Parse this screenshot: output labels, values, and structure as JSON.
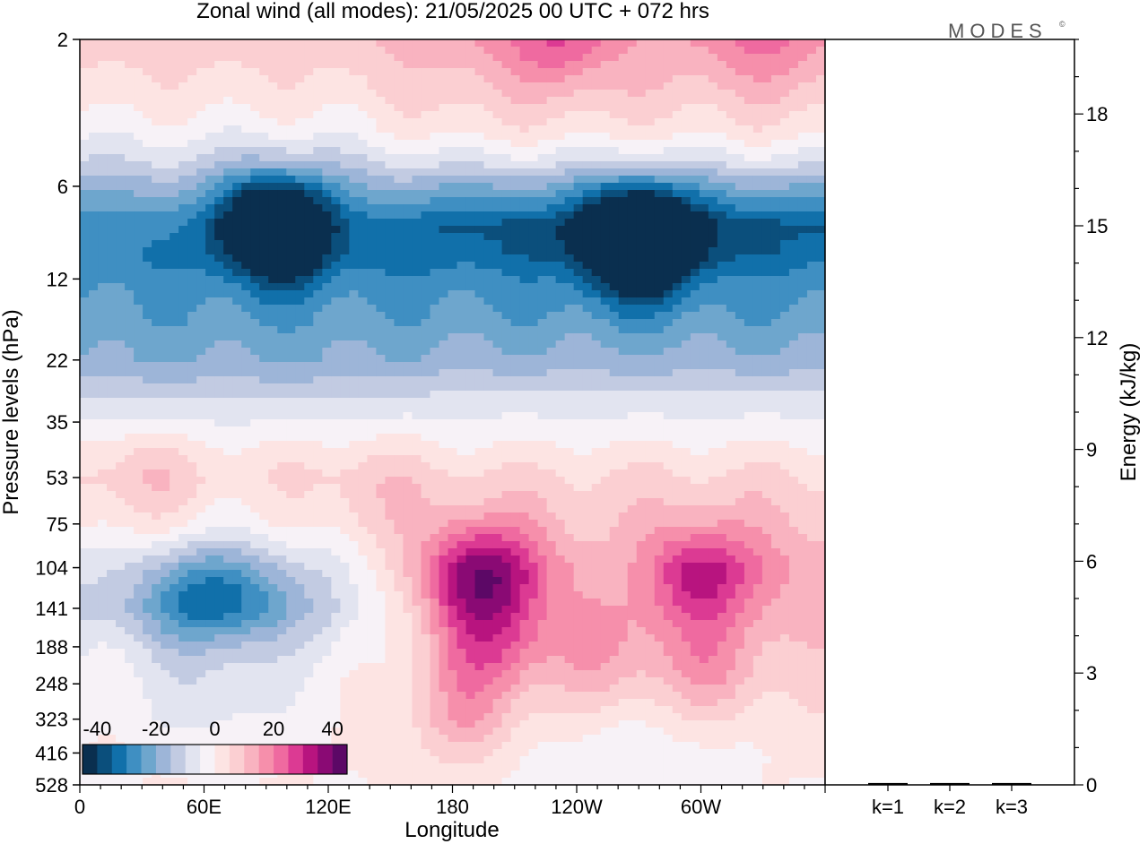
{
  "chart_data": [
    {
      "type": "heatmap",
      "title": "Zonal wind (all modes):  21/05/2025  00 UTC  + 072 hrs",
      "xlabel": "Longitude",
      "ylabel": "Pressure levels (hPa)",
      "x_ticks": [
        {
          "lon": 0,
          "label": "0"
        },
        {
          "lon": 60,
          "label": "60E"
        },
        {
          "lon": 120,
          "label": "120E"
        },
        {
          "lon": 180,
          "label": "180"
        },
        {
          "lon": 240,
          "label": "120W"
        },
        {
          "lon": 300,
          "label": "60W"
        }
      ],
      "xlim": [
        0,
        360
      ],
      "y_scale": "log",
      "y_levels": [
        "2",
        "6",
        "12",
        "22",
        "35",
        "53",
        "75",
        "104",
        "141",
        "188",
        "248",
        "323",
        "416",
        "528"
      ],
      "y_values": [
        2,
        6,
        12,
        22,
        35,
        53,
        75,
        104,
        141,
        188,
        248,
        323,
        416,
        528
      ],
      "colorbar": {
        "tick_labels": [
          "-40",
          "-20",
          "0",
          "20",
          "40"
        ],
        "tick_values": [
          -40,
          -20,
          0,
          20,
          40
        ],
        "colors": [
          "#0a2f4f",
          "#0b4f7c",
          "#1170aa",
          "#3f8fc2",
          "#6ea6cd",
          "#9db5d8",
          "#c2cbe2",
          "#e2e4f0",
          "#f7f2f7",
          "#fde4e3",
          "#fbcfd2",
          "#f9b3c0",
          "#f68fab",
          "#ef6aa0",
          "#dc3a93",
          "#b8147f",
          "#8a0a74",
          "#5c0866"
        ]
      },
      "levels_west": [
        {
          "p": 2,
          "u": 8
        },
        {
          "p": 3,
          "u": 3
        },
        {
          "p": 4,
          "u": -3
        },
        {
          "p": 5,
          "u": -10
        },
        {
          "p": 6,
          "u": -18
        },
        {
          "p": 8,
          "u": -28
        },
        {
          "p": 10,
          "u": -30
        },
        {
          "p": 12,
          "u": -27
        },
        {
          "p": 16,
          "u": -24
        },
        {
          "p": 22,
          "u": -20
        },
        {
          "p": 28,
          "u": -12
        },
        {
          "p": 35,
          "u": -5
        },
        {
          "p": 45,
          "u": 2
        },
        {
          "p": 53,
          "u": 4
        },
        {
          "p": 75,
          "u": 0
        },
        {
          "p": 104,
          "u": -8
        },
        {
          "p": 141,
          "u": -12
        },
        {
          "p": 188,
          "u": -6
        },
        {
          "p": 248,
          "u": -3
        },
        {
          "p": 323,
          "u": -2
        },
        {
          "p": 416,
          "u": 0
        },
        {
          "p": 528,
          "u": 0
        }
      ],
      "levels_east": [
        {
          "p": 2,
          "u": 14
        },
        {
          "p": 3,
          "u": 8
        },
        {
          "p": 4,
          "u": 2
        },
        {
          "p": 5,
          "u": -8
        },
        {
          "p": 6,
          "u": -20
        },
        {
          "p": 8,
          "u": -36
        },
        {
          "p": 10,
          "u": -34
        },
        {
          "p": 12,
          "u": -28
        },
        {
          "p": 16,
          "u": -24
        },
        {
          "p": 22,
          "u": -18
        },
        {
          "p": 28,
          "u": -10
        },
        {
          "p": 35,
          "u": -4
        },
        {
          "p": 45,
          "u": 2
        },
        {
          "p": 53,
          "u": 6
        },
        {
          "p": 75,
          "u": 10
        },
        {
          "p": 104,
          "u": 14
        },
        {
          "p": 141,
          "u": 12
        },
        {
          "p": 188,
          "u": 8
        },
        {
          "p": 248,
          "u": 5
        },
        {
          "p": 323,
          "u": 3
        },
        {
          "p": 416,
          "u": 1
        },
        {
          "p": 528,
          "u": 0
        }
      ],
      "blobs": [
        {
          "lon": 55,
          "p": 130,
          "u": -18
        },
        {
          "lon": 82,
          "p": 130,
          "u": -12
        },
        {
          "lon": 65,
          "p": 270,
          "u": -6
        },
        {
          "lon": 195,
          "p": 110,
          "u": 26
        },
        {
          "lon": 200,
          "p": 190,
          "u": 16
        },
        {
          "lon": 185,
          "p": 320,
          "u": 10
        },
        {
          "lon": 300,
          "p": 110,
          "u": 20
        },
        {
          "lon": 305,
          "p": 220,
          "u": 10
        },
        {
          "lon": 255,
          "p": 200,
          "u": 8
        },
        {
          "lon": 30,
          "p": 55,
          "u": 6
        },
        {
          "lon": 140,
          "p": 60,
          "u": 5
        },
        {
          "lon": 270,
          "p": 105,
          "u": -3
        },
        {
          "lon": 270,
          "p": 9,
          "u": -44
        },
        {
          "lon": 95,
          "p": 8,
          "u": -40
        },
        {
          "lon": 230,
          "p": 2,
          "u": 12
        },
        {
          "lon": 330,
          "p": 2,
          "u": 8
        },
        {
          "lon": 255,
          "p": 400,
          "u": -4
        },
        {
          "lon": 300,
          "p": 400,
          "u": -3
        },
        {
          "lon": 220,
          "p": 500,
          "u": -2
        }
      ]
    },
    {
      "type": "bar",
      "ylabel": "Energy (kJ/kg)",
      "categories": [
        "k=1",
        "k=2",
        "k=3"
      ],
      "values": [
        0.05,
        0.05,
        0.05
      ],
      "ylim": [
        0,
        20
      ],
      "y_ticks": [
        {
          "value": 0,
          "label": "0"
        },
        {
          "value": 3,
          "label": "3"
        },
        {
          "value": 6,
          "label": "6"
        },
        {
          "value": 9,
          "label": "9"
        },
        {
          "value": 12,
          "label": "12"
        },
        {
          "value": 15,
          "label": "15"
        },
        {
          "value": 18,
          "label": "18"
        }
      ]
    }
  ],
  "logo": {
    "text": "MODES"
  }
}
